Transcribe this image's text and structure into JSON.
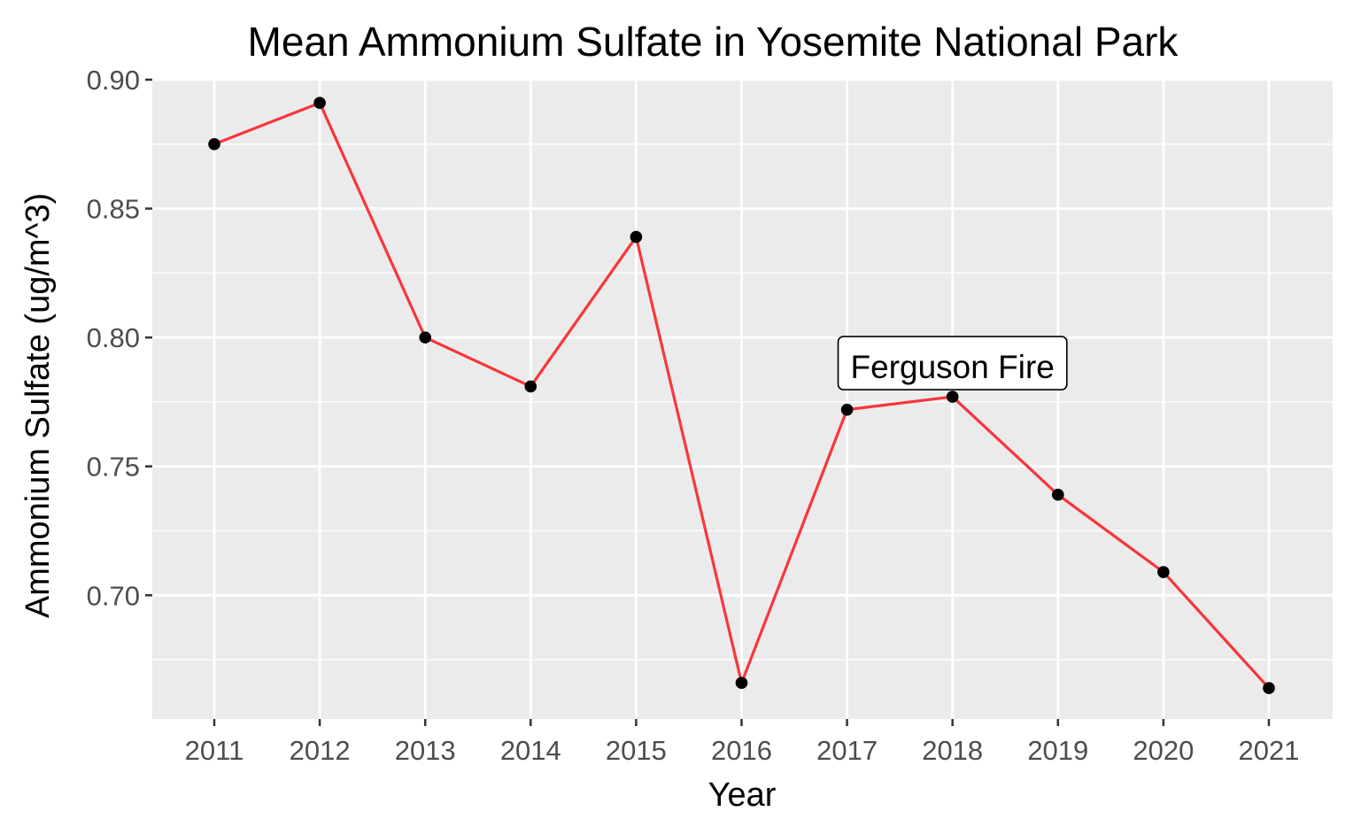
{
  "chart_data": {
    "type": "line",
    "title": "Mean Ammonium Sulfate in Yosemite National Park",
    "xlabel": "Year",
    "ylabel": "Ammonium Sulfate (ug/m^3)",
    "x": [
      2011,
      2012,
      2013,
      2014,
      2015,
      2016,
      2017,
      2018,
      2019,
      2020,
      2021
    ],
    "x_tick_labels": [
      "2011",
      "2012",
      "2013",
      "2014",
      "2015",
      "2016",
      "2017",
      "2018",
      "2019",
      "2020",
      "2021"
    ],
    "series": [
      {
        "values": [
          0.875,
          0.891,
          0.8,
          0.781,
          0.839,
          0.666,
          0.772,
          0.777,
          0.739,
          0.709,
          0.664
        ]
      }
    ],
    "ylim": [
      0.652,
      0.9
    ],
    "y_ticks": [
      0.7,
      0.75,
      0.8,
      0.85,
      0.9
    ],
    "y_tick_labels": [
      "0.70",
      "0.75",
      "0.80",
      "0.85",
      "0.90"
    ],
    "annotation": {
      "text": "Ferguson Fire",
      "x": 2018,
      "y": 0.777
    },
    "grid": true,
    "colors": {
      "line": "#f8363b",
      "point": "#000000",
      "panel": "#ebebeb",
      "grid": "#ffffff"
    }
  }
}
